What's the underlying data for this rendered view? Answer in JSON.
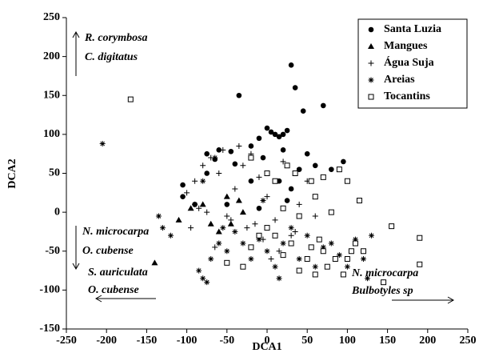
{
  "chart_data": {
    "type": "scatter",
    "x_label": "DCA1",
    "y_label": "DCA2",
    "xlim": [
      -250,
      250
    ],
    "xticks": [
      -250,
      -200,
      -150,
      -100,
      -50,
      0,
      50,
      100,
      150,
      200,
      250
    ],
    "ylim": [
      -150,
      250
    ],
    "yticks": [
      -150,
      -100,
      -50,
      0,
      50,
      100,
      150,
      200,
      250
    ],
    "legend": "upper right",
    "annotations": [
      "R. corymbosa",
      "C. digitatus",
      "N. microcarpa",
      "O. cubense",
      "S. auriculata",
      "O. cubense",
      "N. microcarpa",
      "Bulbotyles sp"
    ],
    "series": [
      {
        "name": "Santa Luzia",
        "marker": "circle",
        "color": "#000000",
        "x": [
          30,
          35,
          -35,
          45,
          70,
          25,
          10,
          0,
          5,
          -10,
          15,
          20,
          -20,
          -45,
          -60,
          -75,
          -65,
          -40,
          20,
          50,
          60,
          95,
          -5,
          40,
          80,
          -105,
          -105,
          -75,
          -20,
          15,
          30,
          -90,
          -50,
          -10,
          25
        ],
        "values": [
          189,
          160,
          150,
          130,
          137,
          105,
          100,
          108,
          103,
          95,
          97,
          100,
          85,
          78,
          80,
          75,
          68,
          62,
          80,
          75,
          60,
          65,
          70,
          55,
          55,
          35,
          20,
          50,
          40,
          40,
          30,
          10,
          10,
          5,
          15
        ]
      },
      {
        "name": "Mangues",
        "marker": "triangle",
        "color": "#000000",
        "x": [
          -140,
          -95,
          -80,
          -70,
          -60,
          -45,
          -35,
          -30,
          -50,
          -110
        ],
        "values": [
          -65,
          5,
          10,
          -15,
          -25,
          -15,
          15,
          0,
          20,
          -10
        ]
      },
      {
        "name": "Água Suja",
        "marker": "plus",
        "color": "#000000",
        "x": [
          -100,
          -90,
          -80,
          -70,
          -60,
          -50,
          -40,
          -30,
          -20,
          -10,
          0,
          10,
          20,
          30,
          40,
          50,
          60,
          -85,
          -65,
          -45,
          -25,
          -5,
          15,
          35,
          -55,
          -35,
          -15,
          5,
          -95,
          -75
        ],
        "values": [
          25,
          40,
          60,
          70,
          50,
          -5,
          30,
          60,
          75,
          45,
          20,
          -10,
          65,
          -30,
          10,
          40,
          -5,
          5,
          -45,
          -10,
          -20,
          -35,
          -50,
          -25,
          80,
          85,
          -15,
          -60,
          -20,
          0
        ]
      },
      {
        "name": "Areias",
        "marker": "asterisk",
        "color": "#000000",
        "x": [
          -205,
          -135,
          -130,
          -120,
          -90,
          -80,
          -75,
          -85,
          -70,
          -60,
          -55,
          -50,
          -40,
          -30,
          -20,
          -10,
          0,
          10,
          15,
          20,
          30,
          40,
          50,
          60,
          70,
          80,
          90,
          100,
          110,
          120,
          125,
          130,
          -65,
          -80,
          -5
        ],
        "values": [
          88,
          -5,
          -20,
          -30,
          10,
          -85,
          -90,
          -75,
          -60,
          -40,
          -20,
          -50,
          -25,
          -40,
          -60,
          -35,
          -50,
          -70,
          -85,
          -40,
          -20,
          -60,
          -30,
          -70,
          -45,
          -40,
          -55,
          -70,
          -35,
          -60,
          -85,
          -30,
          70,
          40,
          15
        ]
      },
      {
        "name": "Tocantins",
        "marker": "square",
        "color": "#000000",
        "x": [
          -170,
          -20,
          0,
          10,
          25,
          35,
          55,
          70,
          90,
          100,
          115,
          155,
          190,
          190,
          145,
          120,
          110,
          95,
          85,
          75,
          70,
          65,
          60,
          55,
          50,
          40,
          30,
          20,
          10,
          0,
          -10,
          -20,
          -30,
          -50,
          60,
          80,
          40,
          20,
          105,
          100
        ],
        "values": [
          145,
          70,
          50,
          40,
          60,
          50,
          40,
          45,
          55,
          40,
          15,
          -18,
          -33,
          -67,
          -90,
          -50,
          -40,
          -80,
          -60,
          -70,
          -50,
          -35,
          -80,
          -45,
          -60,
          -75,
          -40,
          -55,
          -30,
          -20,
          -30,
          -45,
          -70,
          -65,
          20,
          0,
          -5,
          5,
          -50,
          -60
        ]
      }
    ]
  }
}
